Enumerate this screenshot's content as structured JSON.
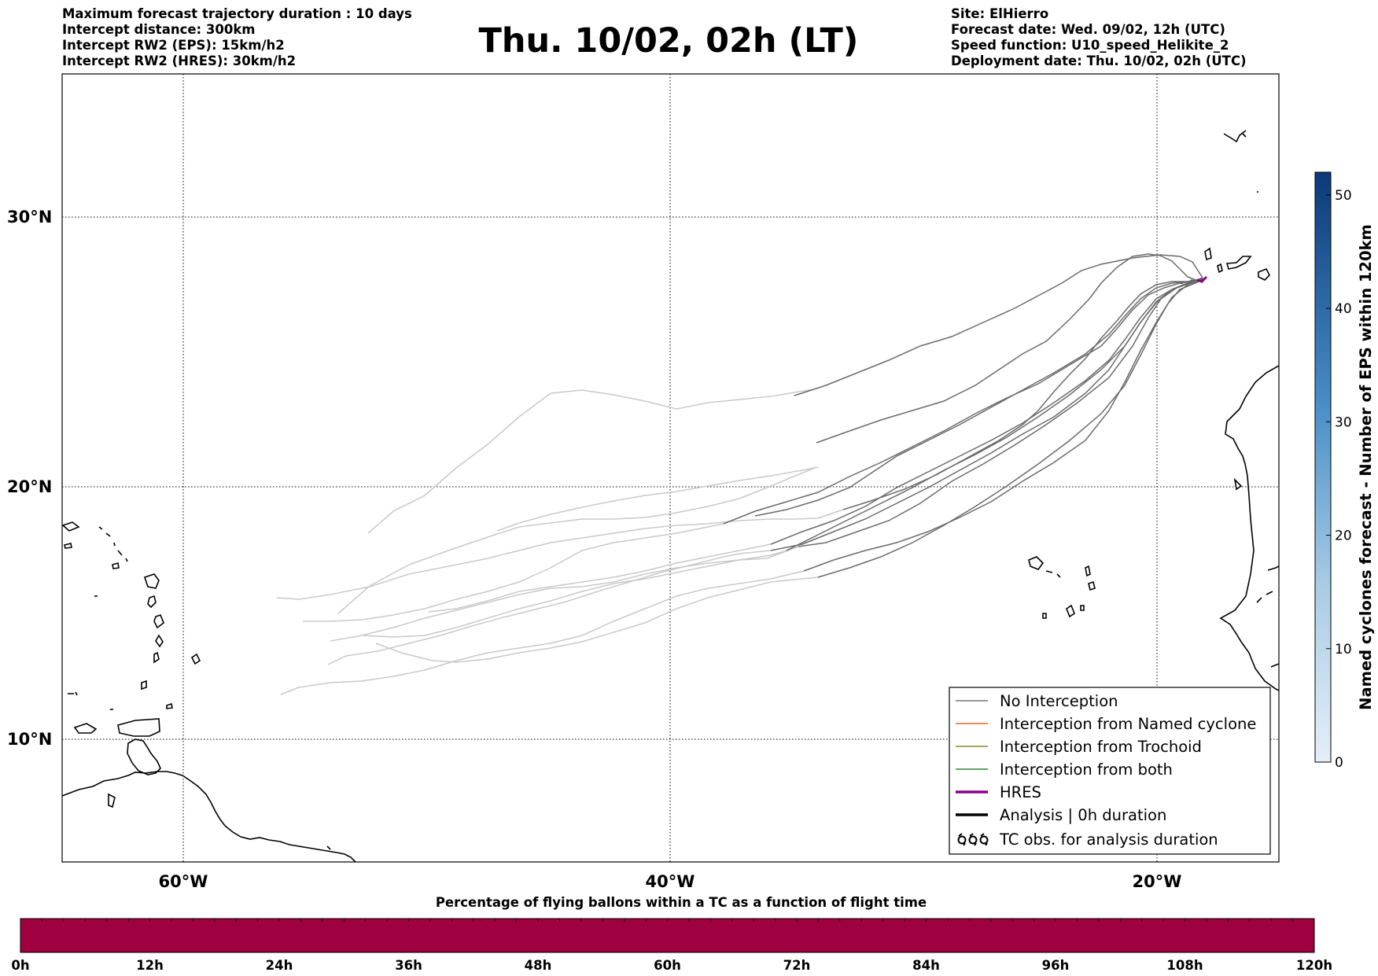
{
  "header_left": [
    "Maximum forecast trajectory duration : 10 days",
    "Intercept distance: 300km",
    "Intercept RW2 (EPS):  15km/h2",
    "Intercept RW2 (HRES): 30km/h2"
  ],
  "header_right": [
    "Site: ElHierro",
    "Forecast date: Wed. 09/02, 12h (UTC)",
    "Speed function: U10_speed_Helikite_2",
    "Deployment date: Thu. 10/02, 02h (UTC)"
  ],
  "title": "Thu. 10/02, 02h (LT)",
  "map": {
    "lat_ticks": [
      "30°N",
      "20°N",
      "10°N"
    ],
    "lon_ticks": [
      "60°W",
      "40°W",
      "20°W"
    ]
  },
  "legend": [
    {
      "label": "No Interception",
      "color": "#777777",
      "style": "thin"
    },
    {
      "label": "Interception from Named cyclone",
      "color": "#e8642a",
      "style": "thin"
    },
    {
      "label": "Interception from Trochoid",
      "color": "#8a8a2a",
      "style": "thin"
    },
    {
      "label": "Interception from both",
      "color": "#2f8a2f",
      "style": "thin"
    },
    {
      "label": "HRES",
      "color": "#8b008b",
      "style": "thick"
    },
    {
      "label": "Analysis | 0h duration",
      "color": "#000000",
      "style": "thick"
    },
    {
      "label": "TC obs. for analysis duration",
      "color": "#000000",
      "style": "symbol"
    }
  ],
  "colorbar": {
    "label": "Named cyclones forecast - Number of EPS within 120km",
    "ticks": [
      "0",
      "10",
      "20",
      "30",
      "40",
      "50"
    ],
    "min": 0,
    "max": 52
  },
  "bottom_bar": {
    "title": "Percentage of flying ballons within a TC as a function of flight time",
    "ticks": [
      "0h",
      "12h",
      "24h",
      "36h",
      "48h",
      "60h",
      "72h",
      "84h",
      "96h",
      "108h",
      "120h"
    ],
    "color": "#9e0040"
  },
  "colors": {
    "track_near": "#666666",
    "track_far": "#c8c8c8",
    "hres": "#8b008b"
  }
}
